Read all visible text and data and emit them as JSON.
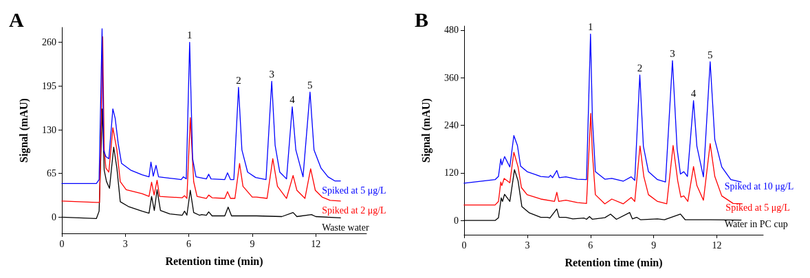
{
  "chart_data": [
    {
      "type": "line",
      "title": "A",
      "xlabel": "Retention time (min)",
      "ylabel": "Signal (mAU)",
      "xlim": [
        0,
        14.4
      ],
      "xticks": [
        0,
        3,
        6,
        9,
        12
      ],
      "ylim": [
        -24,
        282
      ],
      "yticks": [
        0,
        65,
        130,
        195,
        260
      ],
      "series": [
        {
          "name": "Spiked at 5 μg/L",
          "color": "#0000ff",
          "x": [
            0,
            1.63,
            1.76,
            1.9,
            1.97,
            2.08,
            2.22,
            2.41,
            2.52,
            2.66,
            2.82,
            3.25,
            3.79,
            4.12,
            4.21,
            4.32,
            4.45,
            4.57,
            5.1,
            5.64,
            5.74,
            5.88,
            6.04,
            6.18,
            6.34,
            6.83,
            6.94,
            7.05,
            7.7,
            7.83,
            7.97,
            8.13,
            8.35,
            8.51,
            8.78,
            9.16,
            9.65,
            9.92,
            10.08,
            10.3,
            10.62,
            10.89,
            11.06,
            11.4,
            11.73,
            11.92,
            12.25,
            12.58,
            12.9,
            13.17
          ],
          "values": [
            50,
            50,
            56,
            280,
            100,
            90,
            87,
            161,
            147,
            110,
            80,
            70,
            63,
            60,
            82,
            61,
            77,
            60,
            58,
            56,
            60,
            57,
            260,
            87,
            60,
            57,
            64,
            57,
            56,
            66,
            56,
            56,
            193,
            100,
            67,
            59,
            56,
            202,
            107,
            67,
            57,
            164,
            100,
            60,
            186,
            100,
            73,
            60,
            54,
            54
          ]
        },
        {
          "name": "Spiked at 2 μg/L",
          "color": "#ff0000",
          "x": [
            0,
            1.63,
            1.78,
            1.93,
            2.0,
            2.08,
            2.22,
            2.41,
            2.6,
            2.76,
            3.04,
            3.79,
            4.12,
            4.24,
            4.36,
            4.5,
            4.62,
            5.1,
            5.69,
            5.8,
            5.91,
            6.07,
            6.23,
            6.39,
            6.83,
            6.94,
            7.1,
            7.7,
            7.83,
            7.97,
            8.18,
            8.4,
            8.56,
            9.0,
            9.2,
            9.7,
            9.97,
            10.19,
            10.62,
            10.93,
            11.11,
            11.49,
            11.76,
            11.98,
            12.3,
            12.68,
            13.17
          ],
          "values": [
            24,
            22,
            22,
            268,
            100,
            73,
            67,
            133,
            100,
            53,
            41,
            35,
            31,
            52,
            33,
            55,
            31,
            30,
            29,
            32,
            28,
            148,
            53,
            31,
            28,
            33,
            29,
            28,
            38,
            28,
            28,
            80,
            46,
            30,
            30,
            28,
            87,
            46,
            28,
            62,
            40,
            28,
            72,
            40,
            30,
            25,
            24
          ]
        },
        {
          "name": "Waste water",
          "color": "#000000",
          "x": [
            0,
            1.63,
            1.76,
            1.91,
            2.0,
            2.11,
            2.25,
            2.45,
            2.6,
            2.76,
            3.14,
            3.79,
            4.12,
            4.24,
            4.37,
            4.5,
            4.66,
            5.1,
            5.69,
            5.8,
            5.91,
            6.07,
            6.23,
            6.5,
            6.61,
            6.83,
            6.94,
            7.1,
            7.7,
            7.86,
            8.02,
            9.2,
            10.4,
            10.93,
            11.11,
            11.8,
            12.0,
            13.17
          ],
          "values": [
            0,
            -2,
            9,
            161,
            70,
            53,
            43,
            104,
            73,
            23,
            16,
            9,
            6,
            31,
            10,
            41,
            10,
            5,
            3,
            9,
            3,
            40,
            7,
            3,
            4,
            3,
            8,
            2,
            2,
            15,
            2,
            2,
            1,
            7,
            1,
            4,
            1,
            -1
          ]
        }
      ],
      "annotations": [
        {
          "text": "1",
          "x": 6.04,
          "y": 260
        },
        {
          "text": "2",
          "x": 8.35,
          "y": 193
        },
        {
          "text": "3",
          "x": 9.92,
          "y": 202
        },
        {
          "text": "4",
          "x": 10.89,
          "y": 164
        },
        {
          "text": "5",
          "x": 11.73,
          "y": 186
        }
      ]
    },
    {
      "type": "line",
      "title": "B",
      "xlabel": "Retention time (min)",
      "ylabel": "Signal (mAU)",
      "xlim": [
        0,
        14.2
      ],
      "xticks": [
        0,
        3,
        6,
        9,
        12
      ],
      "ylim": [
        -36,
        490
      ],
      "yticks": [
        0,
        120,
        240,
        360,
        480
      ],
      "series": [
        {
          "name": "Spiked at 10 μg/L",
          "color": "#0000ff",
          "x": [
            0,
            1.47,
            1.63,
            1.74,
            1.79,
            1.92,
            2.17,
            2.36,
            2.53,
            2.68,
            2.99,
            3.64,
            4.02,
            4.1,
            4.2,
            4.4,
            4.51,
            4.83,
            5.38,
            5.81,
            6.0,
            6.09,
            6.23,
            6.68,
            7.01,
            7.55,
            7.93,
            8.1,
            8.34,
            8.51,
            8.75,
            9.18,
            9.56,
            9.89,
            10.11,
            10.27,
            10.43,
            10.6,
            10.89,
            11.05,
            11.36,
            11.68,
            11.9,
            12.23,
            12.66,
            13.15
          ],
          "values": [
            94,
            103,
            111,
            155,
            140,
            161,
            135,
            214,
            189,
            137,
            123,
            111,
            109,
            114,
            108,
            126,
            108,
            110,
            104,
            103,
            470,
            256,
            123,
            104,
            106,
            99,
            110,
            101,
            367,
            187,
            123,
            103,
            97,
            403,
            181,
            117,
            123,
            111,
            302,
            187,
            110,
            400,
            204,
            135,
            103,
            97
          ]
        },
        {
          "name": "Spiked at 5 μg/L",
          "color": "#ff0000",
          "x": [
            0,
            1.47,
            1.63,
            1.74,
            1.79,
            1.9,
            2.17,
            2.36,
            2.56,
            2.72,
            2.99,
            3.64,
            4.29,
            4.4,
            4.49,
            4.83,
            5.38,
            5.81,
            6.01,
            6.09,
            6.23,
            6.68,
            7.01,
            7.55,
            7.93,
            8.1,
            8.35,
            8.53,
            8.75,
            9.18,
            9.62,
            9.92,
            10.14,
            10.29,
            10.43,
            10.62,
            10.89,
            11.05,
            11.36,
            11.68,
            11.9,
            12.23,
            12.77,
            13.2
          ],
          "values": [
            39,
            39,
            48,
            97,
            88,
            106,
            95,
            172,
            135,
            83,
            65,
            54,
            48,
            71,
            48,
            51,
            45,
            43,
            270,
            169,
            65,
            42,
            54,
            42,
            58,
            48,
            188,
            111,
            65,
            48,
            42,
            189,
            100,
            59,
            62,
            48,
            136,
            88,
            51,
            194,
            111,
            62,
            43,
            42
          ]
        },
        {
          "name": "Water in PC cup",
          "color": "#000000",
          "x": [
            0,
            1.47,
            1.63,
            1.76,
            1.82,
            1.92,
            2.17,
            2.39,
            2.56,
            2.74,
            3.1,
            3.64,
            3.96,
            4.07,
            4.4,
            4.51,
            4.83,
            5.16,
            5.7,
            5.81,
            5.95,
            6.09,
            6.68,
            6.95,
            7.23,
            7.86,
            7.99,
            8.19,
            8.37,
            9.18,
            9.51,
            10.27,
            10.49,
            11.68,
            13.15
          ],
          "values": [
            0,
            0,
            7,
            57,
            48,
            66,
            48,
            128,
            100,
            35,
            19,
            8,
            8,
            6,
            29,
            8,
            8,
            4,
            6,
            3,
            10,
            3,
            7,
            16,
            3,
            20,
            4,
            8,
            2,
            4,
            2,
            16,
            2,
            2,
            1
          ]
        }
      ],
      "annotations": [
        {
          "text": "1",
          "x": 6.0,
          "y": 470
        },
        {
          "text": "2",
          "x": 8.34,
          "y": 367
        },
        {
          "text": "3",
          "x": 9.89,
          "y": 403
        },
        {
          "text": "4",
          "x": 10.89,
          "y": 302
        },
        {
          "text": "5",
          "x": 11.68,
          "y": 400
        }
      ]
    }
  ]
}
